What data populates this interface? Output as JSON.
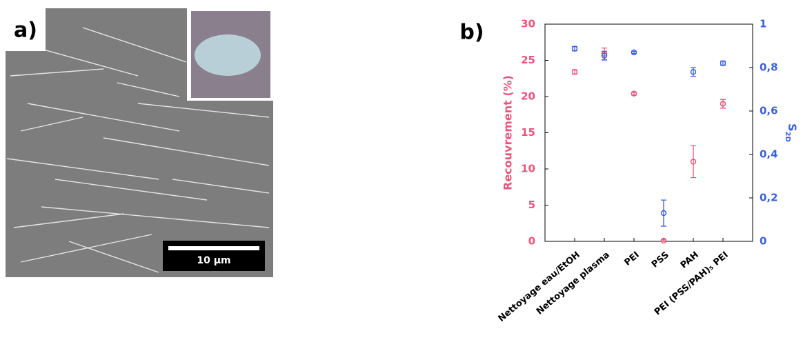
{
  "panel_a": {
    "label": "a)",
    "scale_bar": "10 µm"
  },
  "panel_b_label": "b)",
  "chart_data": {
    "type": "scatter",
    "ylabel": "Recouvrement (%)",
    "y2label": [
      "S",
      "2D"
    ],
    "categories": [
      "Nettoyage eau/EtOH",
      "Nettoyage plasma",
      "PEI",
      "PSS",
      "PAH",
      "PEI (PSS/PAH)₅ PEI"
    ],
    "series": [
      {
        "name": "Recouvrement",
        "color": "#e8557c",
        "values": [
          23.4,
          25.9,
          20.4,
          0.1,
          11,
          19
        ],
        "errors": [
          0.3,
          0.8,
          0.2,
          0.1,
          2.2,
          0.6
        ]
      },
      {
        "name": "S2D",
        "color": "#3b5fd8",
        "axis": "y2",
        "values": [
          0.887,
          0.855,
          0.87,
          0.13,
          0.78,
          0.82
        ],
        "errors": [
          0.01,
          0.02,
          0.005,
          0.06,
          0.02,
          0.01
        ]
      }
    ],
    "ylim": [
      0,
      30
    ],
    "yticks": [
      0,
      5,
      10,
      15,
      20,
      25,
      30
    ],
    "y2lim": [
      0,
      1
    ],
    "y2ticks": [
      0,
      {
        "value": 0.2,
        "label": "0,2"
      },
      {
        "value": 0.4,
        "label": "0,4"
      },
      {
        "value": 0.6,
        "label": "0,6"
      },
      {
        "value": 0.8,
        "label": "0,8"
      },
      1
    ]
  }
}
